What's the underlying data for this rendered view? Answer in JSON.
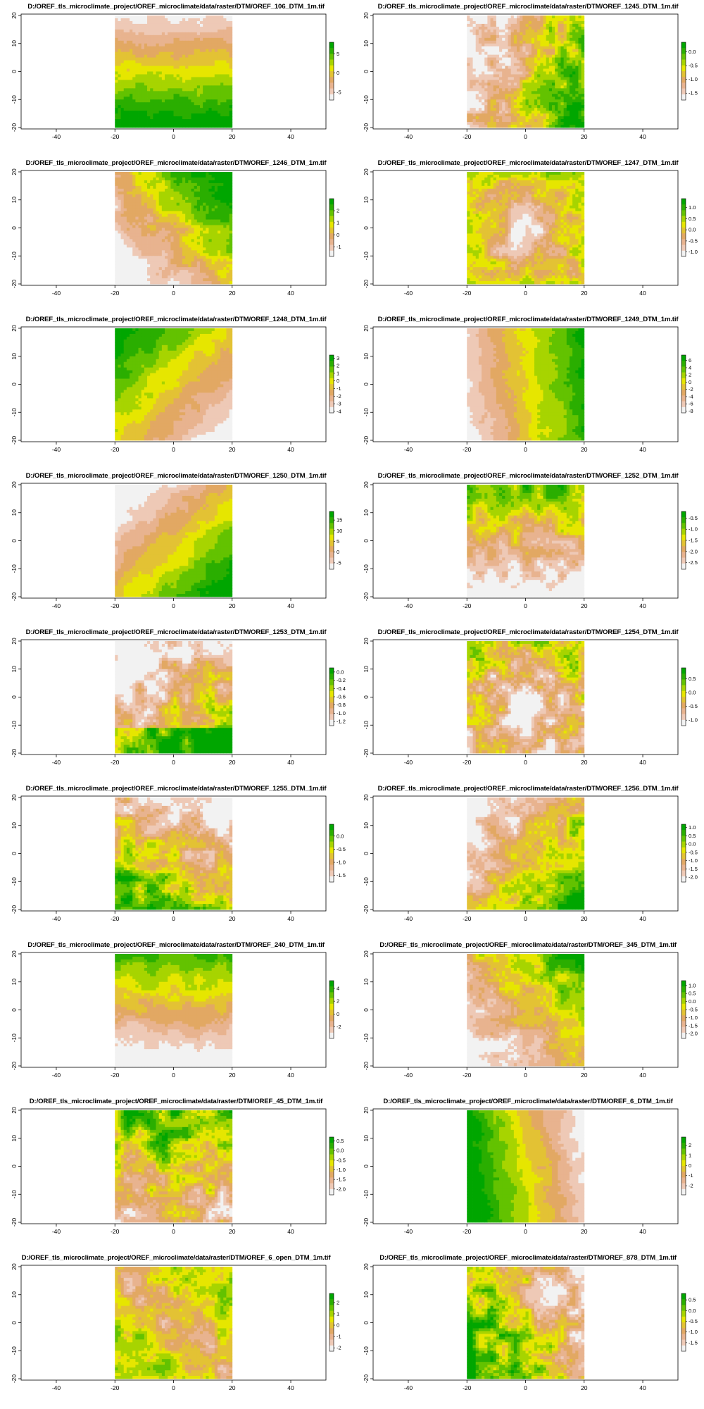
{
  "colors": {
    "palette": [
      "#f2f2f2",
      "#eec9b6",
      "#e8b38f",
      "#e2a863",
      "#e3c234",
      "#e6e600",
      "#a7d400",
      "#63c200",
      "#2aae00",
      "#00a600"
    ],
    "frame": "#000000",
    "background": "#ffffff"
  },
  "chart_data": [
    {
      "type": "heatmap",
      "title": "D:/OREF_tls_microclimate_project/OREF_microclimate/data/raster/DTM/OREF_106_DTM_1m.tif",
      "xlim": [
        -52,
        52
      ],
      "ylim": [
        -20.5,
        20.5
      ],
      "x_ticks": [
        "-40",
        "-20",
        "0",
        "20",
        "40"
      ],
      "y_ticks": [
        "-20",
        "-10",
        "0",
        "10",
        "20"
      ],
      "raster_extent": {
        "x": [
          -20,
          20
        ],
        "y": [
          -20,
          20
        ]
      },
      "legend": {
        "range": [
          -7,
          8
        ],
        "labels": [
          "5",
          "0",
          "-5"
        ],
        "values": [
          5,
          0,
          -5
        ]
      },
      "pattern": "lowest values in upper part, highest along the bottom edge"
    },
    {
      "type": "heatmap",
      "title": "D:/OREF_tls_microclimate_project/OREF_microclimate/data/raster/DTM/OREF_1245_DTM_1m.tif",
      "xlim": [
        -52,
        52
      ],
      "ylim": [
        -20.5,
        20.5
      ],
      "x_ticks": [
        "-40",
        "-20",
        "0",
        "20",
        "40"
      ],
      "y_ticks": [
        "-20",
        "-10",
        "0",
        "10",
        "20"
      ],
      "raster_extent": {
        "x": [
          -20,
          20
        ],
        "y": [
          -20,
          20
        ]
      },
      "legend": {
        "range": [
          -1.75,
          0.35
        ],
        "labels": [
          "0.0",
          "-0.5",
          "-1.0",
          "-1.5"
        ],
        "values": [
          0,
          -0.5,
          -1,
          -1.5
        ]
      },
      "pattern": "low pale area on the left, higher green patches on the right"
    },
    {
      "type": "heatmap",
      "title": "D:/OREF_tls_microclimate_project/OREF_microclimate/data/raster/DTM/OREF_1246_DTM_1m.tif",
      "xlim": [
        -52,
        52
      ],
      "ylim": [
        -20.5,
        20.5
      ],
      "x_ticks": [
        "-40",
        "-20",
        "0",
        "20",
        "40"
      ],
      "y_ticks": [
        "-20",
        "-10",
        "0",
        "10",
        "20"
      ],
      "raster_extent": {
        "x": [
          -20,
          20
        ],
        "y": [
          -20,
          20
        ]
      },
      "legend": {
        "range": [
          -1.8,
          3
        ],
        "labels": [
          "2",
          "1",
          "0",
          "-1"
        ],
        "values": [
          2,
          1,
          0,
          -1
        ]
      },
      "pattern": "high green corner at top right, low pale area at bottom"
    },
    {
      "type": "heatmap",
      "title": "D:/OREF_tls_microclimate_project/OREF_microclimate/data/raster/DTM/OREF_1247_DTM_1m.tif",
      "xlim": [
        -52,
        52
      ],
      "ylim": [
        -20.5,
        20.5
      ],
      "x_ticks": [
        "-40",
        "-20",
        "0",
        "20",
        "40"
      ],
      "y_ticks": [
        "-20",
        "-10",
        "0",
        "10",
        "20"
      ],
      "raster_extent": {
        "x": [
          -20,
          20
        ],
        "y": [
          -20,
          20
        ]
      },
      "legend": {
        "range": [
          -1.2,
          1.4
        ],
        "labels": [
          "1.0",
          "0.5",
          "0.0",
          "-0.5",
          "-1.0"
        ],
        "values": [
          1,
          0.5,
          0,
          -0.5,
          -1
        ]
      },
      "pattern": "pale low centre, higher green rim"
    },
    {
      "type": "heatmap",
      "title": "D:/OREF_tls_microclimate_project/OREF_microclimate/data/raster/DTM/OREF_1248_DTM_1m.tif",
      "xlim": [
        -52,
        52
      ],
      "ylim": [
        -20.5,
        20.5
      ],
      "x_ticks": [
        "-40",
        "-20",
        "0",
        "20",
        "40"
      ],
      "y_ticks": [
        "-20",
        "-10",
        "0",
        "10",
        "20"
      ],
      "raster_extent": {
        "x": [
          -20,
          20
        ],
        "y": [
          -20,
          20
        ]
      },
      "legend": {
        "range": [
          -4.2,
          3.4
        ],
        "labels": [
          "3",
          "2",
          "1",
          "0",
          "-1",
          "-2",
          "-3",
          "-4"
        ],
        "values": [
          3,
          2,
          1,
          0,
          -1,
          -2,
          -3,
          -4
        ]
      },
      "pattern": "high green at upper left, low pale at lower right"
    },
    {
      "type": "heatmap",
      "title": "D:/OREF_tls_microclimate_project/OREF_microclimate/data/raster/DTM/OREF_1249_DTM_1m.tif",
      "xlim": [
        -52,
        52
      ],
      "ylim": [
        -20.5,
        20.5
      ],
      "x_ticks": [
        "-40",
        "-20",
        "0",
        "20",
        "40"
      ],
      "y_ticks": [
        "-20",
        "-10",
        "0",
        "10",
        "20"
      ],
      "raster_extent": {
        "x": [
          -20,
          20
        ],
        "y": [
          -20,
          20
        ]
      },
      "legend": {
        "range": [
          -8.5,
          7.5
        ],
        "labels": [
          "6",
          "4",
          "2",
          "0",
          "-2",
          "-4",
          "-6",
          "-8"
        ],
        "values": [
          6,
          4,
          2,
          0,
          -2,
          -4,
          -6,
          -8
        ]
      },
      "pattern": "low pale on the left, high green on the right"
    },
    {
      "type": "heatmap",
      "title": "D:/OREF_tls_microclimate_project/OREF_microclimate/data/raster/DTM/OREF_1250_DTM_1m.tif",
      "xlim": [
        -52,
        52
      ],
      "ylim": [
        -20.5,
        20.5
      ],
      "x_ticks": [
        "-40",
        "-20",
        "0",
        "20",
        "40"
      ],
      "y_ticks": [
        "-20",
        "-10",
        "0",
        "10",
        "20"
      ],
      "raster_extent": {
        "x": [
          -20,
          20
        ],
        "y": [
          -20,
          20
        ]
      },
      "legend": {
        "range": [
          -8,
          19
        ],
        "labels": [
          "15",
          "10",
          "5",
          "0",
          "-5"
        ],
        "values": [
          15,
          10,
          5,
          0,
          -5
        ]
      },
      "pattern": "low pale upper left, high green lower right"
    },
    {
      "type": "heatmap",
      "title": "D:/OREF_tls_microclimate_project/OREF_microclimate/data/raster/DTM/OREF_1252_DTM_1m.tif",
      "xlim": [
        -52,
        52
      ],
      "ylim": [
        -20.5,
        20.5
      ],
      "x_ticks": [
        "-40",
        "-20",
        "0",
        "20",
        "40"
      ],
      "y_ticks": [
        "-20",
        "-10",
        "0",
        "10",
        "20"
      ],
      "raster_extent": {
        "x": [
          -20,
          20
        ],
        "y": [
          -20,
          20
        ]
      },
      "legend": {
        "range": [
          -2.8,
          -0.2
        ],
        "labels": [
          "-0.5",
          "-1.0",
          "-1.5",
          "-2.0",
          "-2.5"
        ],
        "values": [
          -0.5,
          -1,
          -1.5,
          -2,
          -2.5
        ]
      },
      "pattern": "high green at top, low pale at bottom"
    },
    {
      "type": "heatmap",
      "title": "D:/OREF_tls_microclimate_project/OREF_microclimate/data/raster/DTM/OREF_1253_DTM_1m.tif",
      "xlim": [
        -52,
        52
      ],
      "ylim": [
        -20.5,
        20.5
      ],
      "x_ticks": [
        "-40",
        "-20",
        "0",
        "20",
        "40"
      ],
      "y_ticks": [
        "-20",
        "-10",
        "0",
        "10",
        "20"
      ],
      "raster_extent": {
        "x": [
          -20,
          20
        ],
        "y": [
          -20,
          20
        ]
      },
      "legend": {
        "range": [
          -1.3,
          0.1
        ],
        "labels": [
          "0.0",
          "-0.2",
          "-0.4",
          "-0.6",
          "-0.8",
          "-1.0",
          "-1.2"
        ],
        "values": [
          0,
          -0.2,
          -0.4,
          -0.6,
          -0.8,
          -1,
          -1.2
        ]
      },
      "pattern": "pale low area at upper left, green band along the bottom right"
    },
    {
      "type": "heatmap",
      "title": "D:/OREF_tls_microclimate_project/OREF_microclimate/data/raster/DTM/OREF_1254_DTM_1m.tif",
      "xlim": [
        -52,
        52
      ],
      "ylim": [
        -20.5,
        20.5
      ],
      "x_ticks": [
        "-40",
        "-20",
        "0",
        "20",
        "40"
      ],
      "y_ticks": [
        "-20",
        "-10",
        "0",
        "10",
        "20"
      ],
      "raster_extent": {
        "x": [
          -20,
          20
        ],
        "y": [
          -20,
          20
        ]
      },
      "legend": {
        "range": [
          -1.2,
          0.9
        ],
        "labels": [
          "0.5",
          "0.0",
          "-0.5",
          "-1.0"
        ],
        "values": [
          0.5,
          0,
          -0.5,
          -1
        ]
      },
      "pattern": "mixed patches, pale centre"
    },
    {
      "type": "heatmap",
      "title": "D:/OREF_tls_microclimate_project/OREF_microclimate/data/raster/DTM/OREF_1255_DTM_1m.tif",
      "xlim": [
        -52,
        52
      ],
      "ylim": [
        -20.5,
        20.5
      ],
      "x_ticks": [
        "-40",
        "-20",
        "0",
        "20",
        "40"
      ],
      "y_ticks": [
        "-20",
        "-10",
        "0",
        "10",
        "20"
      ],
      "raster_extent": {
        "x": [
          -20,
          20
        ],
        "y": [
          -20,
          20
        ]
      },
      "legend": {
        "range": [
          -1.75,
          0.45
        ],
        "labels": [
          "0.0",
          "-0.5",
          "-1.0",
          "-1.5"
        ],
        "values": [
          0,
          -0.5,
          -1,
          -1.5
        ]
      },
      "pattern": "pale upper right, green along the bottom"
    },
    {
      "type": "heatmap",
      "title": "D:/OREF_tls_microclimate_project/OREF_microclimate/data/raster/DTM/OREF_1256_DTM_1m.tif",
      "xlim": [
        -52,
        52
      ],
      "ylim": [
        -20.5,
        20.5
      ],
      "x_ticks": [
        "-40",
        "-20",
        "0",
        "20",
        "40"
      ],
      "y_ticks": [
        "-20",
        "-10",
        "0",
        "10",
        "20"
      ],
      "raster_extent": {
        "x": [
          -20,
          20
        ],
        "y": [
          -20,
          20
        ]
      },
      "legend": {
        "range": [
          -2.3,
          1.2
        ],
        "labels": [
          "1.0",
          "0.5",
          "0.0",
          "-0.5",
          "-1.0",
          "-1.5",
          "-2.0"
        ],
        "values": [
          1,
          0.5,
          0,
          -0.5,
          -1,
          -1.5,
          -2
        ]
      },
      "pattern": "pale upper left, green lower right"
    },
    {
      "type": "heatmap",
      "title": "D:/OREF_tls_microclimate_project/OREF_microclimate/data/raster/DTM/OREF_240_DTM_1m.tif",
      "xlim": [
        -52,
        52
      ],
      "ylim": [
        -20.5,
        20.5
      ],
      "x_ticks": [
        "-40",
        "-20",
        "0",
        "20",
        "40"
      ],
      "y_ticks": [
        "-20",
        "-10",
        "0",
        "10",
        "20"
      ],
      "raster_extent": {
        "x": [
          -20,
          20
        ],
        "y": [
          -20,
          20
        ]
      },
      "legend": {
        "range": [
          -3.8,
          5.2
        ],
        "labels": [
          "4",
          "2",
          "0",
          "-2"
        ],
        "values": [
          4,
          2,
          0,
          -2
        ]
      },
      "pattern": "high green at top, low pale at bottom"
    },
    {
      "type": "heatmap",
      "title": "D:/OREF_tls_microclimate_project/OREF_microclimate/data/raster/DTM/OREF_345_DTM_1m.tif",
      "xlim": [
        -52,
        52
      ],
      "ylim": [
        -20.5,
        20.5
      ],
      "x_ticks": [
        "-40",
        "-20",
        "0",
        "20",
        "40"
      ],
      "y_ticks": [
        "-20",
        "-10",
        "0",
        "10",
        "20"
      ],
      "raster_extent": {
        "x": [
          -20,
          20
        ],
        "y": [
          -20,
          20
        ]
      },
      "legend": {
        "range": [
          -2.3,
          1.3
        ],
        "labels": [
          "1.0",
          "0.5",
          "0.0",
          "-0.5",
          "-1.0",
          "-1.5",
          "-2.0"
        ],
        "values": [
          1,
          0.5,
          0,
          -0.5,
          -1,
          -1.5,
          -2
        ]
      },
      "pattern": "pale lower left, green upper right"
    },
    {
      "type": "heatmap",
      "title": "D:/OREF_tls_microclimate_project/OREF_microclimate/data/raster/DTM/OREF_45_DTM_1m.tif",
      "xlim": [
        -52,
        52
      ],
      "ylim": [
        -20.5,
        20.5
      ],
      "x_ticks": [
        "-40",
        "-20",
        "0",
        "20",
        "40"
      ],
      "y_ticks": [
        "-20",
        "-10",
        "0",
        "10",
        "20"
      ],
      "raster_extent": {
        "x": [
          -20,
          20
        ],
        "y": [
          -20,
          20
        ]
      },
      "legend": {
        "range": [
          -2.3,
          0.7
        ],
        "labels": [
          "0.5",
          "0.0",
          "-0.5",
          "-1.0",
          "-1.5",
          "-2.0"
        ],
        "values": [
          0.5,
          0,
          -0.5,
          -1,
          -1.5,
          -2
        ]
      },
      "pattern": "green upper area, pale at the bottom"
    },
    {
      "type": "heatmap",
      "title": "D:/OREF_tls_microclimate_project/OREF_microclimate/data/raster/DTM/OREF_6_DTM_1m.tif",
      "xlim": [
        -52,
        52
      ],
      "ylim": [
        -20.5,
        20.5
      ],
      "x_ticks": [
        "-40",
        "-20",
        "0",
        "20",
        "40"
      ],
      "y_ticks": [
        "-20",
        "-10",
        "0",
        "10",
        "20"
      ],
      "raster_extent": {
        "x": [
          -20,
          20
        ],
        "y": [
          -20,
          20
        ]
      },
      "legend": {
        "range": [
          -2.9,
          2.8
        ],
        "labels": [
          "2",
          "1",
          "0",
          "-1",
          "-2"
        ],
        "values": [
          2,
          1,
          0,
          -1,
          -2
        ]
      },
      "pattern": "high green on the left, low pale on the right"
    },
    {
      "type": "heatmap",
      "title": "D:/OREF_tls_microclimate_project/OREF_microclimate/data/raster/DTM/OREF_6_open_DTM_1m.tif",
      "xlim": [
        -52,
        52
      ],
      "ylim": [
        -20.5,
        20.5
      ],
      "x_ticks": [
        "-40",
        "-20",
        "0",
        "20",
        "40"
      ],
      "y_ticks": [
        "-20",
        "-10",
        "0",
        "10",
        "20"
      ],
      "raster_extent": {
        "x": [
          -20,
          20
        ],
        "y": [
          -20,
          20
        ]
      },
      "legend": {
        "range": [
          -2.3,
          2.8
        ],
        "labels": [
          "2",
          "1",
          "0",
          "-1",
          "-2"
        ],
        "values": [
          2,
          1,
          0,
          -1,
          -2
        ]
      },
      "pattern": "diagonal low pale band, green elsewhere"
    },
    {
      "type": "heatmap",
      "title": "D:/OREF_tls_microclimate_project/OREF_microclimate/data/raster/DTM/OREF_878_DTM_1m.tif",
      "xlim": [
        -52,
        52
      ],
      "ylim": [
        -20.5,
        20.5
      ],
      "x_ticks": [
        "-40",
        "-20",
        "0",
        "20",
        "40"
      ],
      "y_ticks": [
        "-20",
        "-10",
        "0",
        "10",
        "20"
      ],
      "raster_extent": {
        "x": [
          -20,
          20
        ],
        "y": [
          -20,
          20
        ]
      },
      "legend": {
        "range": [
          -1.9,
          0.8
        ],
        "labels": [
          "0.5",
          "0.0",
          "-0.5",
          "-1.0",
          "-1.5"
        ],
        "values": [
          0.5,
          0,
          -0.5,
          -1,
          -1.5
        ]
      },
      "pattern": "green on the left, pale at lower right"
    }
  ]
}
